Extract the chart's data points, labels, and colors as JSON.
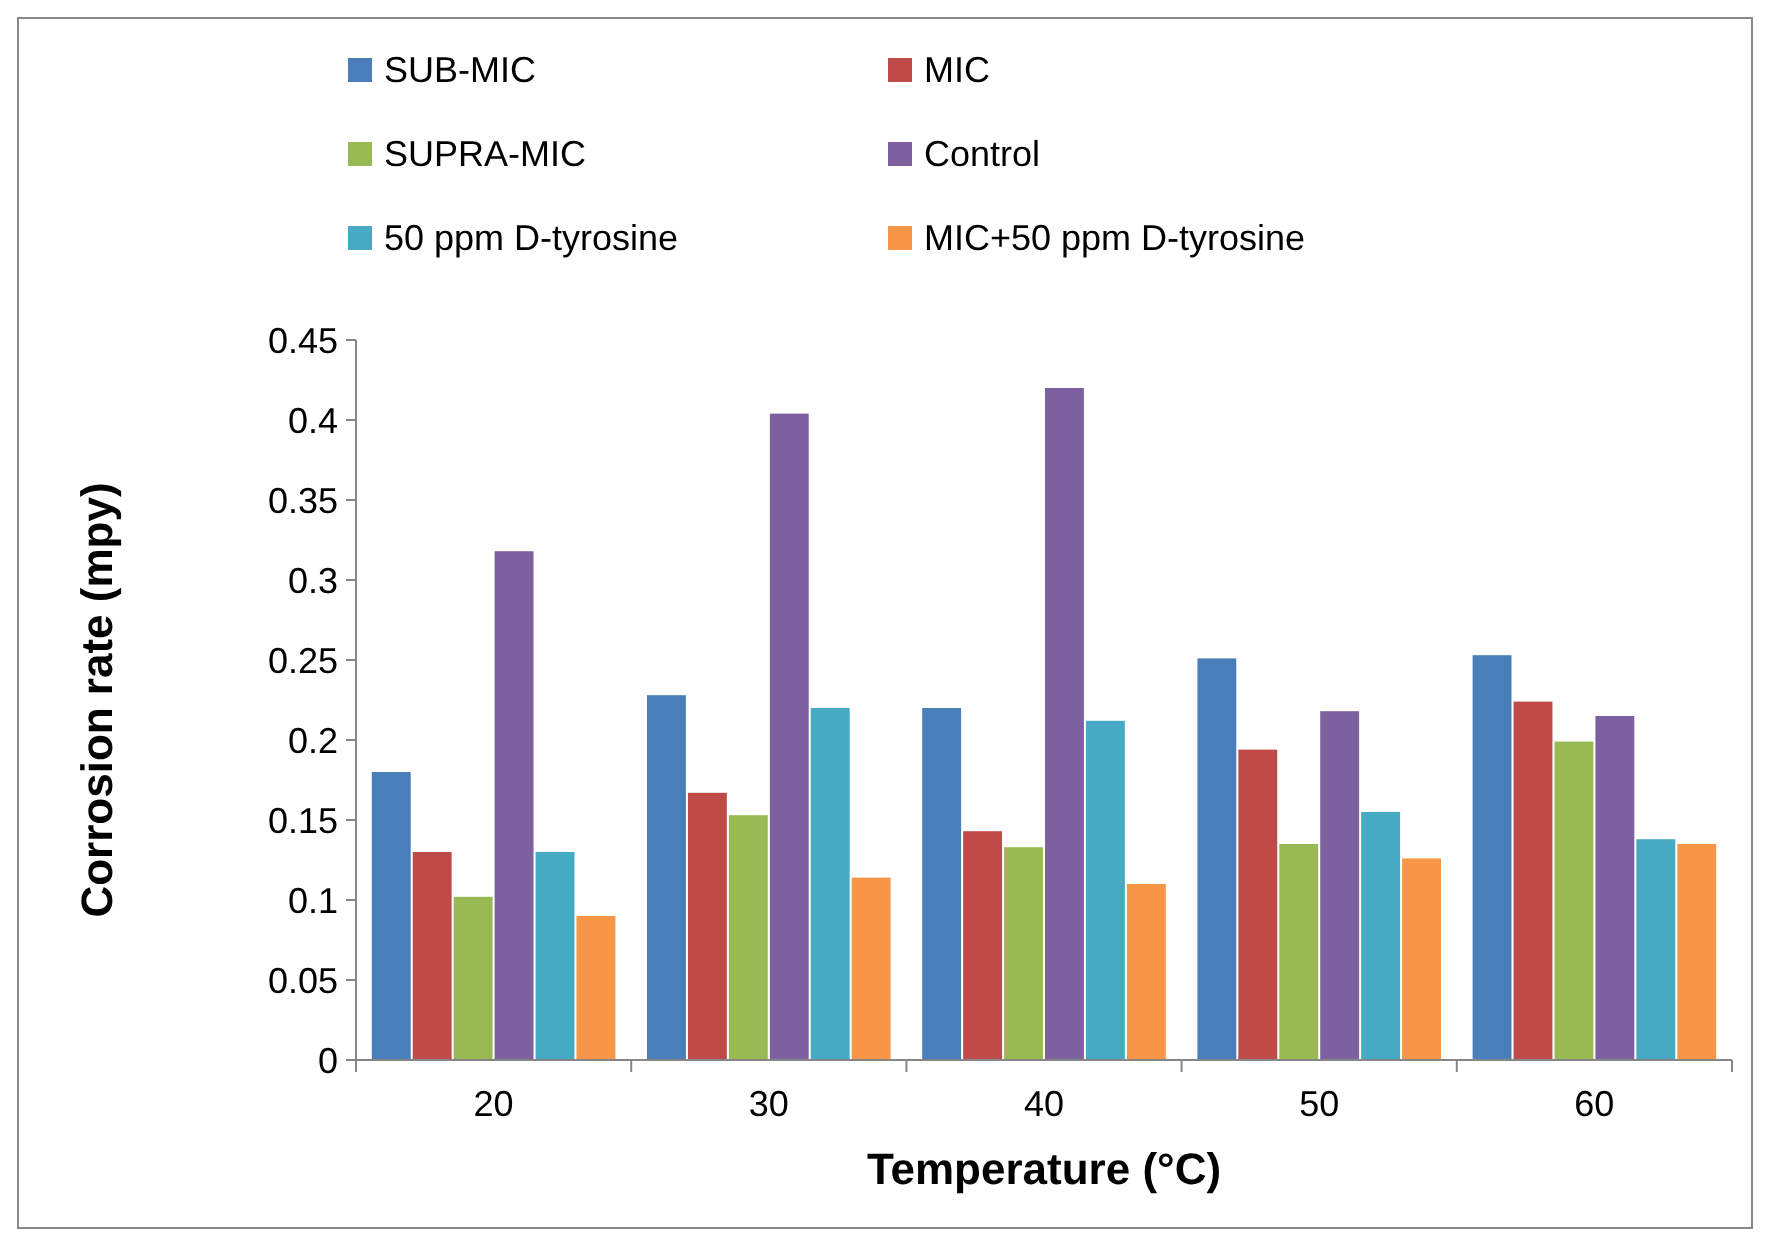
{
  "chart_data": {
    "type": "bar",
    "xlabel": "Temperature (°C)",
    "ylabel": "Corrosion rate (mpy)",
    "categories": [
      "20",
      "30",
      "40",
      "50",
      "60"
    ],
    "series": [
      {
        "name": "SUB-MIC",
        "color": "#4a7ebb",
        "values": [
          0.18,
          0.228,
          0.22,
          0.251,
          0.253
        ]
      },
      {
        "name": "MIC",
        "color": "#be4b48",
        "values": [
          0.13,
          0.167,
          0.143,
          0.194,
          0.224
        ]
      },
      {
        "name": "SUPRA-MIC",
        "color": "#98b954",
        "values": [
          0.102,
          0.153,
          0.133,
          0.135,
          0.199
        ]
      },
      {
        "name": "Control",
        "color": "#7d60a0",
        "values": [
          0.318,
          0.404,
          0.42,
          0.218,
          0.215
        ]
      },
      {
        "name": "50 ppm D-tyrosine",
        "color": "#46aac5",
        "values": [
          0.13,
          0.22,
          0.212,
          0.155,
          0.138
        ]
      },
      {
        "name": "MIC+50 ppm D-tyrosine",
        "color": "#f79646",
        "values": [
          0.09,
          0.114,
          0.11,
          0.126,
          0.135
        ]
      }
    ],
    "ylim": [
      0,
      0.45
    ],
    "yticks": [
      0,
      0.05,
      0.1,
      0.15,
      0.2,
      0.25,
      0.3,
      0.35,
      0.4,
      0.45
    ],
    "grid": false,
    "legend": "top"
  }
}
